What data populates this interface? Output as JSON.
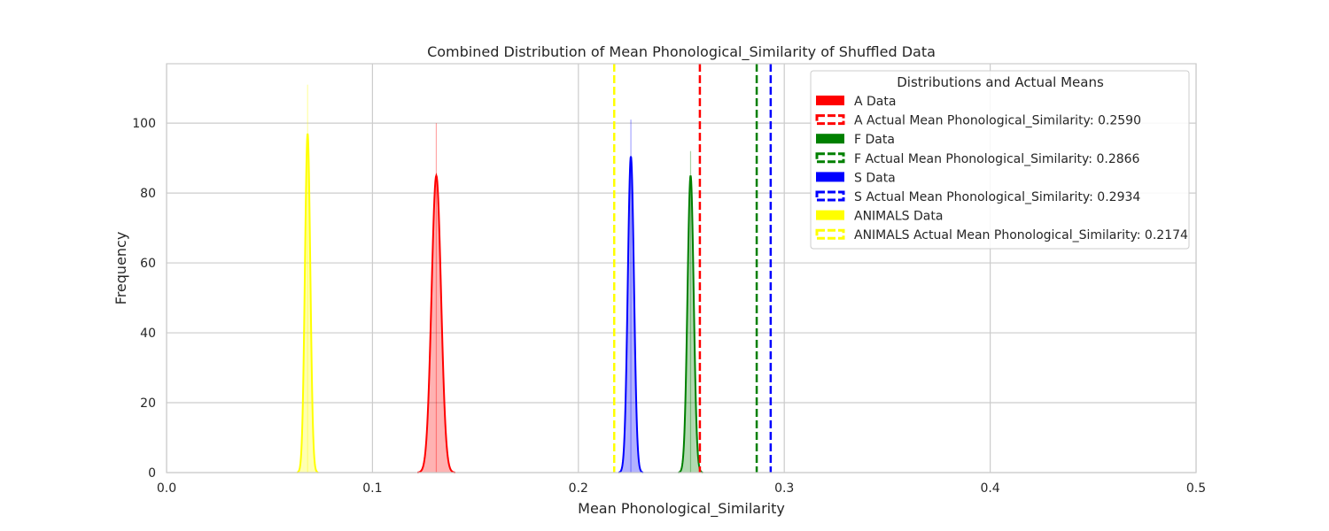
{
  "chart_data": {
    "type": "area",
    "title": "Combined Distribution of Mean Phonological_Similarity of Shuffled Data",
    "xlabel": "Mean Phonological_Similarity",
    "ylabel": "Frequency",
    "xlim": [
      0.0,
      0.5
    ],
    "ylim": [
      0,
      117
    ],
    "xticks": [
      "0.0",
      "0.1",
      "0.2",
      "0.3",
      "0.4",
      "0.5"
    ],
    "yticks": [
      "0",
      "20",
      "40",
      "60",
      "80",
      "100"
    ],
    "grid": true,
    "legend": {
      "title": "Distributions and Actual Means",
      "placement": "top-right"
    },
    "series": [
      {
        "name": "A Data",
        "color": "#ff0000",
        "peak_x": 0.131,
        "peak_y": 85,
        "sigma": 0.0023,
        "hist_spike_max": 100,
        "mean_name": "A Actual Mean Phonological_Similarity: 0.2590",
        "actual_mean": 0.259
      },
      {
        "name": "F Data",
        "color": "#008000",
        "peak_x": 0.2545,
        "peak_y": 85,
        "sigma": 0.0015,
        "hist_spike_max": 92,
        "mean_name": "F Actual Mean Phonological_Similarity: 0.2866",
        "actual_mean": 0.2866
      },
      {
        "name": "S Data",
        "color": "#0000ff",
        "peak_x": 0.2255,
        "peak_y": 90.5,
        "sigma": 0.0015,
        "hist_spike_max": 101,
        "mean_name": "S Actual Mean Phonological_Similarity: 0.2934",
        "actual_mean": 0.2934
      },
      {
        "name": "ANIMALS Data",
        "color": "#ffff00",
        "peak_x": 0.0685,
        "peak_y": 97,
        "sigma": 0.0013,
        "hist_spike_max": 111,
        "mean_name": "ANIMALS Actual Mean Phonological_Similarity: 0.2174",
        "actual_mean": 0.2174
      }
    ]
  }
}
